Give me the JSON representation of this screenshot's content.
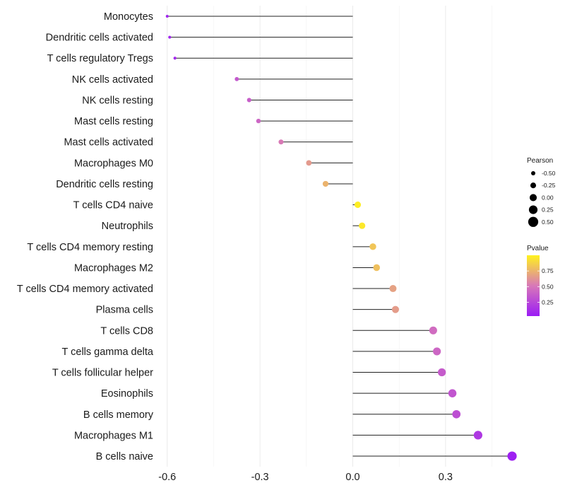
{
  "chart_data": {
    "type": "lollipop",
    "x": {
      "range": [
        -0.62,
        0.54
      ],
      "ticks": [
        -0.6,
        -0.3,
        0.0,
        0.3
      ],
      "tick_labels": [
        "-0.6",
        "-0.3",
        "0.0",
        "0.3"
      ],
      "grid_minor": [
        -0.45,
        -0.15,
        0.15,
        0.45
      ]
    },
    "baseline": 0.0,
    "categories": [
      "Monocytes",
      "Dendritic cells activated",
      "T cells regulatory  Tregs",
      "NK cells activated",
      "NK cells resting",
      "Mast cells resting",
      "Mast cells activated",
      "Macrophages M0",
      "Dendritic cells resting",
      "T cells CD4 naive",
      "Neutrophils",
      "T cells CD4 memory resting",
      "Macrophages M2",
      "T cells CD4 memory activated",
      "Plasma cells",
      "T cells CD8",
      "T cells gamma delta",
      "T cells follicular helper",
      "Eosinophils",
      "B cells memory",
      "Macrophages M1",
      "B cells naive"
    ],
    "pearson": [
      -0.6,
      -0.592,
      -0.575,
      -0.375,
      -0.335,
      -0.305,
      -0.232,
      -0.142,
      -0.088,
      0.016,
      0.03,
      0.065,
      0.077,
      0.13,
      0.138,
      0.26,
      0.272,
      0.288,
      0.322,
      0.335,
      0.405,
      0.515
    ],
    "pvalue": [
      0.08,
      0.08,
      0.1,
      0.35,
      0.38,
      0.42,
      0.52,
      0.65,
      0.75,
      0.98,
      0.96,
      0.82,
      0.8,
      0.68,
      0.66,
      0.45,
      0.42,
      0.36,
      0.33,
      0.3,
      0.18,
      0.05
    ],
    "legend": {
      "size": {
        "title": "Pearson",
        "values": [
          -0.5,
          -0.25,
          0.0,
          0.25,
          0.5
        ],
        "labels": [
          "-0.50",
          "-0.25",
          "0.00",
          "0.25",
          "0.50"
        ]
      },
      "color": {
        "title": "Pvalue",
        "ticks": [
          0.75,
          0.5,
          0.25
        ],
        "tick_labels": [
          "0.75",
          "0.50",
          "0.25"
        ],
        "range": [
          0.03,
          1.0
        ],
        "low_color": "#9b1cf5",
        "mid_color": "#d878b8",
        "high_color": "#fff21e"
      }
    },
    "title": "",
    "xlabel": "",
    "ylabel": ""
  }
}
